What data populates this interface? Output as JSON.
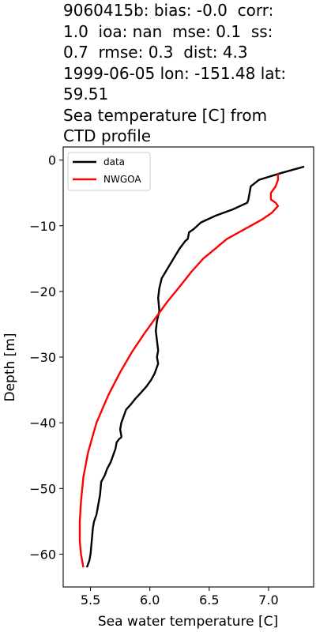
{
  "chart_data": {
    "type": "line",
    "title_lines": [
      "9060415b: bias: -0.0  corr:",
      "1.0  ioa: nan  mse: 0.1  ss:",
      "0.7  rmse: 0.3  dist: 4.3",
      "1999-06-05 lon: -151.48 lat:",
      "59.51",
      "Sea temperature [C] from",
      "CTD profile"
    ],
    "xlabel": "Sea water temperature [C]",
    "ylabel": "Depth [m]",
    "xlim": [
      5.27,
      7.38
    ],
    "ylim": [
      -65,
      2
    ],
    "xticks": [
      5.5,
      6.0,
      6.5,
      7.0
    ],
    "xtick_labels": [
      "5.5",
      "6.0",
      "6.5",
      "7.0"
    ],
    "yticks": [
      0,
      -10,
      -20,
      -30,
      -40,
      -50,
      -60
    ],
    "ytick_labels": [
      "0",
      "−10",
      "−20",
      "−30",
      "−40",
      "−50",
      "−60"
    ],
    "legend_position": "top-left",
    "series": [
      {
        "name": "data",
        "color": "#000000",
        "x": [
          7.3,
          7.1,
          6.92,
          6.85,
          6.84,
          6.83,
          6.82,
          6.7,
          6.55,
          6.43,
          6.37,
          6.33,
          6.32,
          6.3,
          6.25,
          6.2,
          6.15,
          6.1,
          6.08,
          6.07,
          6.08,
          6.06,
          6.05,
          6.06,
          6.07,
          6.06,
          6.07,
          6.04,
          6.01,
          5.97,
          5.92,
          5.88,
          5.84,
          5.8,
          5.78,
          5.76,
          5.75,
          5.76,
          5.76,
          5.74,
          5.72,
          5.71,
          5.69,
          5.67,
          5.64,
          5.62,
          5.59,
          5.58,
          5.56,
          5.55,
          5.53,
          5.52,
          5.51,
          5.5,
          5.49,
          5.48,
          5.47
        ],
        "y": [
          -1,
          -2,
          -3,
          -4,
          -5,
          -6,
          -6.5,
          -7.5,
          -8.5,
          -9.5,
          -10.5,
          -11,
          -12,
          -12.3,
          -13.5,
          -15,
          -16.5,
          -18,
          -19.5,
          -21,
          -23,
          -24.5,
          -26,
          -27.5,
          -29,
          -30,
          -31,
          -32.5,
          -33.5,
          -34.5,
          -35.5,
          -36.3,
          -37.2,
          -38,
          -39,
          -40,
          -41,
          -42,
          -42.2,
          -42.5,
          -43,
          -44,
          -45,
          -46,
          -47,
          -48,
          -49,
          -51,
          -53,
          -54,
          -55,
          -56,
          -58,
          -60,
          -61,
          -61.5,
          -62
        ]
      },
      {
        "name": "NWGOA",
        "color": "#ff0000",
        "x": [
          7.08,
          7.08,
          7.06,
          7.02,
          7.02,
          7.06,
          7.08,
          7.03,
          6.95,
          6.85,
          6.75,
          6.65,
          6.55,
          6.45,
          6.35,
          6.25,
          6.15,
          6.05,
          5.95,
          5.85,
          5.75,
          5.65,
          5.55,
          5.48,
          5.44,
          5.42,
          5.41,
          5.41,
          5.42,
          5.43,
          5.44
        ],
        "y": [
          -2,
          -3,
          -4,
          -5,
          -6,
          -6.5,
          -7,
          -8,
          -9,
          -10,
          -11,
          -12,
          -13.5,
          -15,
          -17,
          -19.3,
          -21.5,
          -24,
          -26.5,
          -29.2,
          -32.3,
          -35.8,
          -40,
          -44.5,
          -48.3,
          -52,
          -55,
          -58,
          -60,
          -61,
          -62
        ]
      }
    ]
  }
}
